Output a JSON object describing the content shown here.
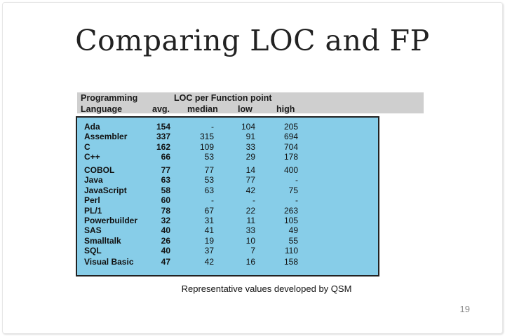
{
  "slide": {
    "title": "Comparing LOC and FP",
    "header": {
      "programming": "Programming",
      "language": "Language",
      "loc_per_fp": "LOC per Function point",
      "avg": "avg.",
      "median": "median",
      "low": "low",
      "high": "high"
    },
    "rows": [
      {
        "lang": "Ada",
        "avg": "154",
        "median": "-",
        "low": "104",
        "high": "205"
      },
      {
        "lang": "Assembler",
        "avg": "337",
        "median": "315",
        "low": "91",
        "high": "694"
      },
      {
        "lang": "C",
        "avg": "162",
        "median": "109",
        "low": "33",
        "high": "704"
      },
      {
        "lang": "C++",
        "avg": "66",
        "median": "53",
        "low": "29",
        "high": "178"
      },
      {
        "lang": "COBOL",
        "avg": "77",
        "median": "77",
        "low": "14",
        "high": "400"
      },
      {
        "lang": "Java",
        "avg": "63",
        "median": "53",
        "low": "77",
        "high": "-"
      },
      {
        "lang": "JavaScript",
        "avg": "58",
        "median": "63",
        "low": "42",
        "high": "75"
      },
      {
        "lang": "Perl",
        "avg": "60",
        "median": "-",
        "low": "-",
        "high": "-"
      },
      {
        "lang": "PL/1",
        "avg": "78",
        "median": "67",
        "low": "22",
        "high": "263"
      },
      {
        "lang": "Powerbuilder",
        "avg": "32",
        "median": "31",
        "low": "11",
        "high": "105"
      },
      {
        "lang": "SAS",
        "avg": "40",
        "median": "41",
        "low": "33",
        "high": "49"
      },
      {
        "lang": "Smalltalk",
        "avg": "26",
        "median": "19",
        "low": "10",
        "high": "55"
      },
      {
        "lang": "SQL",
        "avg": "40",
        "median": "37",
        "low": "7",
        "high": "110"
      },
      {
        "lang": "Visual Basic",
        "avg": "47",
        "median": "42",
        "low": "16",
        "high": "158"
      }
    ],
    "caption": "Representative values developed by QSM",
    "page_number": "19"
  }
}
